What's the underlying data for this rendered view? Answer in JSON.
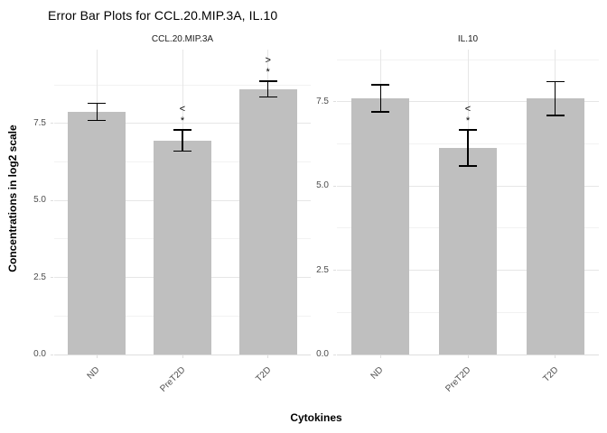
{
  "title": "Error Bar Plots for CCL.20.MIP.3A, IL.10",
  "chart_data": {
    "type": "bar",
    "title": "Error Bar Plots for CCL.20.MIP.3A, IL.10",
    "xlabel": "Cytokines",
    "ylabel": "Concentrations in log2 scale",
    "categories": [
      "ND",
      "PreT2D",
      "T2D"
    ],
    "yticks": [
      0.0,
      2.5,
      5.0,
      7.5
    ],
    "minor_tick_step": 1.25,
    "grid": true,
    "legend_position": "none",
    "bar_color": "#bfbfbf",
    "error_bar_color": "#000000",
    "grid_major_color": "#e6e6e6",
    "grid_minor_color": "#f2f2f2",
    "axis_line_color": "#dedede",
    "panels": [
      {
        "name": "CCL.20.MIP.3A",
        "ylim": [
          0,
          9.9
        ],
        "values": [
          7.88,
          6.93,
          8.6
        ],
        "error_low": [
          7.6,
          6.6,
          8.36
        ],
        "error_high": [
          8.16,
          7.29,
          8.87
        ],
        "annotations": [
          [],
          [
            "<",
            "*"
          ],
          [
            ">",
            "*"
          ]
        ]
      },
      {
        "name": "IL.10",
        "ylim": [
          0,
          9.05
        ],
        "values": [
          7.6,
          6.13,
          7.6
        ],
        "error_low": [
          7.2,
          5.6,
          7.1
        ],
        "error_high": [
          8.0,
          6.66,
          8.1
        ],
        "annotations": [
          [],
          [
            "<",
            "*"
          ],
          []
        ]
      }
    ]
  }
}
